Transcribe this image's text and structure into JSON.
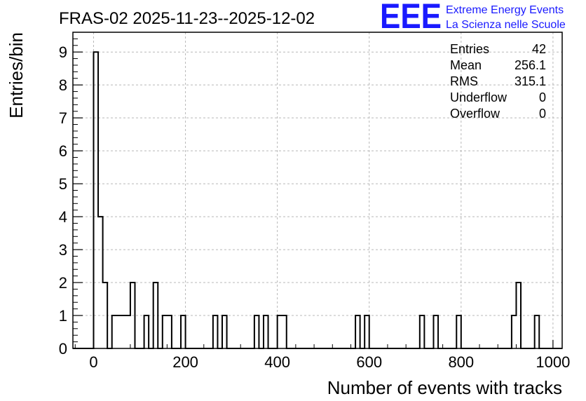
{
  "chart_data": {
    "type": "histogram",
    "title": "FRAS-02 2025-11-23--2025-12-02",
    "xlabel": "Number of events with tracks",
    "ylabel": "Entries/bin",
    "xlim": [
      -45,
      1020
    ],
    "ylim": [
      0,
      9.6
    ],
    "bin_width": 10,
    "grid": true,
    "x_ticks": [
      0,
      200,
      400,
      600,
      800,
      1000
    ],
    "y_ticks": [
      0,
      1,
      2,
      3,
      4,
      5,
      6,
      7,
      8,
      9
    ],
    "bins": [
      {
        "x": 0,
        "count": 9
      },
      {
        "x": 10,
        "count": 4
      },
      {
        "x": 20,
        "count": 2
      },
      {
        "x": 40,
        "count": 1
      },
      {
        "x": 50,
        "count": 1
      },
      {
        "x": 60,
        "count": 1
      },
      {
        "x": 70,
        "count": 1
      },
      {
        "x": 80,
        "count": 2
      },
      {
        "x": 110,
        "count": 1
      },
      {
        "x": 130,
        "count": 2
      },
      {
        "x": 150,
        "count": 1
      },
      {
        "x": 160,
        "count": 1
      },
      {
        "x": 190,
        "count": 1
      },
      {
        "x": 260,
        "count": 1
      },
      {
        "x": 280,
        "count": 1
      },
      {
        "x": 350,
        "count": 1
      },
      {
        "x": 370,
        "count": 1
      },
      {
        "x": 400,
        "count": 1
      },
      {
        "x": 410,
        "count": 1
      },
      {
        "x": 570,
        "count": 1
      },
      {
        "x": 590,
        "count": 1
      },
      {
        "x": 710,
        "count": 1
      },
      {
        "x": 740,
        "count": 1
      },
      {
        "x": 790,
        "count": 1
      },
      {
        "x": 910,
        "count": 1
      },
      {
        "x": 920,
        "count": 2
      },
      {
        "x": 960,
        "count": 1
      }
    ],
    "stats": [
      {
        "label": "Entries",
        "value": "42"
      },
      {
        "label": "Mean",
        "value": "256.1"
      },
      {
        "label": "RMS",
        "value": "315.1"
      },
      {
        "label": "Underflow",
        "value": "0"
      },
      {
        "label": "Overflow",
        "value": "0"
      }
    ]
  },
  "logo": {
    "mark": "EEE",
    "line1": "Extreme Energy Events",
    "line2": "La Scienza nelle Scuole",
    "color": "#1a1aff"
  }
}
